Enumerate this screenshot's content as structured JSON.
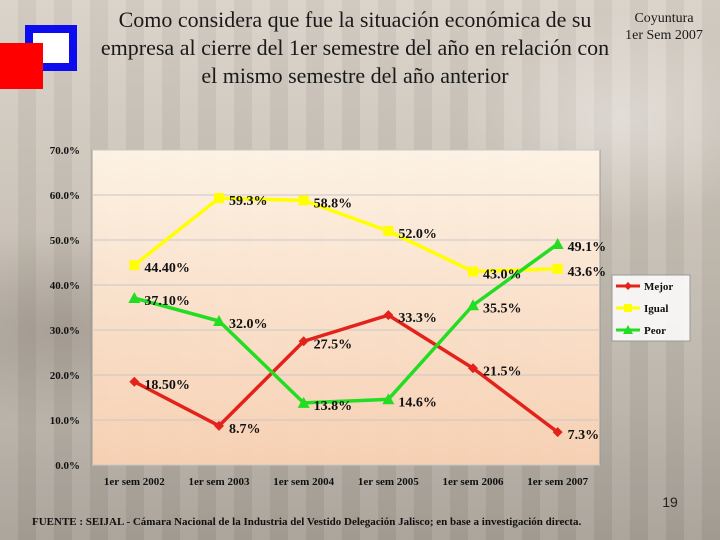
{
  "header": {
    "title": "Como considera que fue la situación económica de su empresa al cierre del 1er semestre del año en relación con el mismo semestre del año anterior",
    "corner_line1": "Coyuntura",
    "corner_line2": "1er Sem 2007"
  },
  "footer": {
    "page_number": "19",
    "source": "FUENTE :  SEIJAL - Cámara Nacional de la Industria del Vestido Delegación Jalisco;  en base a investigación directa."
  },
  "colors": {
    "mejor": "#e3231b",
    "igual": "#ffff00",
    "peor": "#22dd22",
    "deco_blue": "#0c0cee",
    "deco_red": "#ff0000"
  },
  "chart_data": {
    "type": "line",
    "categories": [
      "1er sem 2002",
      "1er sem 2003",
      "1er sem 2004",
      "1er sem 2005",
      "1er sem 2006",
      "1er sem 2007"
    ],
    "series": [
      {
        "name": "Mejor",
        "values": [
          18.5,
          8.7,
          27.5,
          33.3,
          21.5,
          7.3
        ],
        "labels": [
          "18.50%",
          "8.7%",
          "27.5%",
          "33.3%",
          "21.5%",
          "7.3%"
        ],
        "marker": "diamond"
      },
      {
        "name": "Igual",
        "values": [
          44.4,
          59.3,
          58.8,
          52.0,
          43.0,
          43.6
        ],
        "labels": [
          "44.40%",
          "59.3%",
          "58.8%",
          "52.0%",
          "43.0%",
          "43.6%"
        ],
        "marker": "square"
      },
      {
        "name": "Peor",
        "values": [
          37.1,
          32.0,
          13.8,
          14.6,
          35.5,
          49.1
        ],
        "labels": [
          "37.10%",
          "32.0%",
          "13.8%",
          "14.6%",
          "35.5%",
          "49.1%"
        ],
        "marker": "triangle"
      }
    ],
    "yticks": [
      "0.0%",
      "10.0%",
      "20.0%",
      "30.0%",
      "40.0%",
      "50.0%",
      "60.0%",
      "70.0%"
    ],
    "ylim": [
      0,
      70
    ],
    "grid": true,
    "legend": "right"
  }
}
